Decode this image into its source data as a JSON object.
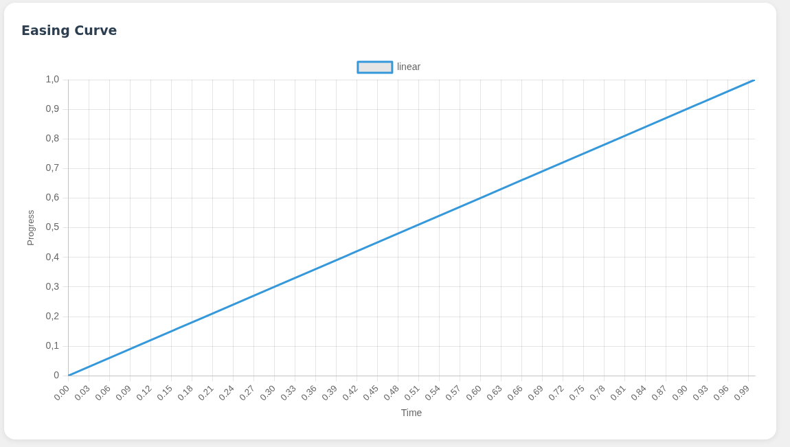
{
  "chart_data": {
    "type": "line",
    "title": "Easing Curve",
    "xlabel": "Time",
    "ylabel": "Progress",
    "x": [
      0,
      0.1,
      0.2,
      0.3,
      0.4,
      0.5,
      0.6,
      0.7,
      0.8,
      0.9,
      1
    ],
    "series": [
      {
        "name": "linear",
        "color": "#3498db",
        "values": [
          0,
          0.1,
          0.2,
          0.3,
          0.4,
          0.5,
          0.6,
          0.7,
          0.8,
          0.9,
          1
        ]
      }
    ],
    "xlim": [
      0,
      1
    ],
    "xticks": [
      {
        "value": 0,
        "label": "0.00"
      },
      {
        "value": 0.03,
        "label": "0.03"
      },
      {
        "value": 0.06,
        "label": "0.06"
      },
      {
        "value": 0.09,
        "label": "0.09"
      },
      {
        "value": 0.12,
        "label": "0.12"
      },
      {
        "value": 0.15,
        "label": "0.15"
      },
      {
        "value": 0.18,
        "label": "0.18"
      },
      {
        "value": 0.21,
        "label": "0.21"
      },
      {
        "value": 0.24,
        "label": "0.24"
      },
      {
        "value": 0.27,
        "label": "0.27"
      },
      {
        "value": 0.3,
        "label": "0.30"
      },
      {
        "value": 0.33,
        "label": "0.33"
      },
      {
        "value": 0.36,
        "label": "0.36"
      },
      {
        "value": 0.39,
        "label": "0.39"
      },
      {
        "value": 0.42,
        "label": "0.42"
      },
      {
        "value": 0.45,
        "label": "0.45"
      },
      {
        "value": 0.48,
        "label": "0.48"
      },
      {
        "value": 0.51,
        "label": "0.51"
      },
      {
        "value": 0.54,
        "label": "0.54"
      },
      {
        "value": 0.57,
        "label": "0.57"
      },
      {
        "value": 0.6,
        "label": "0.60"
      },
      {
        "value": 0.63,
        "label": "0.63"
      },
      {
        "value": 0.66,
        "label": "0.66"
      },
      {
        "value": 0.69,
        "label": "0.69"
      },
      {
        "value": 0.72,
        "label": "0.72"
      },
      {
        "value": 0.75,
        "label": "0.75"
      },
      {
        "value": 0.78,
        "label": "0.78"
      },
      {
        "value": 0.81,
        "label": "0.81"
      },
      {
        "value": 0.84,
        "label": "0.84"
      },
      {
        "value": 0.87,
        "label": "0.87"
      },
      {
        "value": 0.9,
        "label": "0.90"
      },
      {
        "value": 0.93,
        "label": "0.93"
      },
      {
        "value": 0.96,
        "label": "0.96"
      },
      {
        "value": 0.99,
        "label": "0.99"
      }
    ],
    "ylim": [
      0,
      1
    ],
    "yticks": [
      0,
      {
        "value": 0.1,
        "label": "0,1"
      },
      {
        "value": 0.2,
        "label": "0,2"
      },
      {
        "value": 0.3,
        "label": "0,3"
      },
      {
        "value": 0.4,
        "label": "0,4"
      },
      {
        "value": 0.5,
        "label": "0,5"
      },
      {
        "value": 0.6,
        "label": "0,6"
      },
      {
        "value": 0.7,
        "label": "0,7"
      },
      {
        "value": 0.8,
        "label": "0,8"
      },
      {
        "value": 0.9,
        "label": "0,9"
      },
      {
        "value": 1,
        "label": "1,0"
      }
    ],
    "grid": true,
    "legend": "top",
    "marker": "none",
    "line_style": "solid"
  }
}
